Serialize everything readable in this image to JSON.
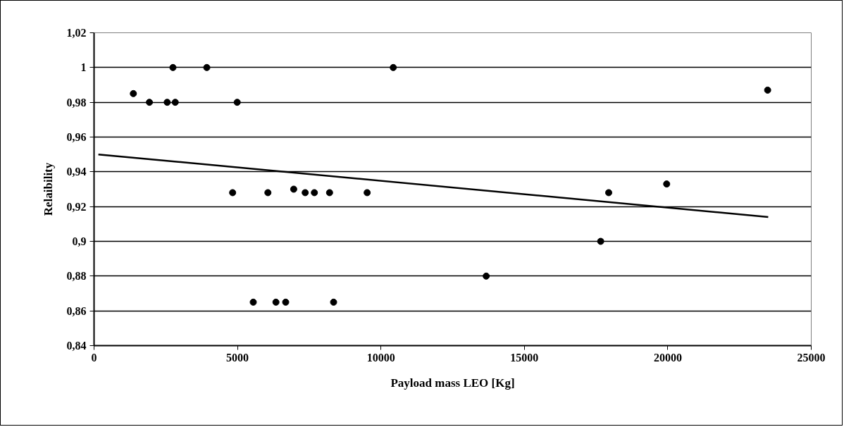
{
  "chart_data": {
    "type": "scatter",
    "xlabel": "Payload mass LEO [Kg]",
    "ylabel": "Relaibility",
    "xlim": [
      0,
      25000
    ],
    "xticks": [
      0,
      5000,
      10000,
      15000,
      20000,
      25000
    ],
    "ylim": [
      0.84,
      1.02
    ],
    "yticks": [
      {
        "value": 0.84,
        "label": "0,84"
      },
      {
        "value": 0.86,
        "label": "0,86"
      },
      {
        "value": 0.88,
        "label": "0,88"
      },
      {
        "value": 0.9,
        "label": "0,9"
      },
      {
        "value": 0.92,
        "label": "0,92"
      },
      {
        "value": 0.94,
        "label": "0,94"
      },
      {
        "value": 0.96,
        "label": "0,96"
      },
      {
        "value": 0.98,
        "label": "0,98"
      },
      {
        "value": 1.0,
        "label": "1"
      },
      {
        "value": 1.02,
        "label": "1,02"
      }
    ],
    "grid": "y",
    "marker": "circle",
    "series": [
      {
        "color": "#000000",
        "x": [
          1370,
          1930,
          2550,
          2830,
          2750,
          3930,
          4990,
          10430,
          23480,
          4830,
          6060,
          6960,
          7360,
          7680,
          8210,
          9520,
          5550,
          6340,
          6680,
          8350,
          13670,
          17660,
          17940,
          19960
        ],
        "values": [
          0.985,
          0.98,
          0.98,
          0.98,
          1.0,
          1.0,
          0.98,
          1.0,
          0.987,
          0.928,
          0.928,
          0.93,
          0.928,
          0.928,
          0.928,
          0.928,
          0.865,
          0.865,
          0.865,
          0.865,
          0.88,
          0.9,
          0.928,
          0.933
        ]
      },
      {
        "type": "line",
        "color": "#000000",
        "line_style": "solid",
        "marker": "none",
        "x": [
          150,
          23500
        ],
        "values": [
          0.95,
          0.914
        ]
      }
    ]
  }
}
